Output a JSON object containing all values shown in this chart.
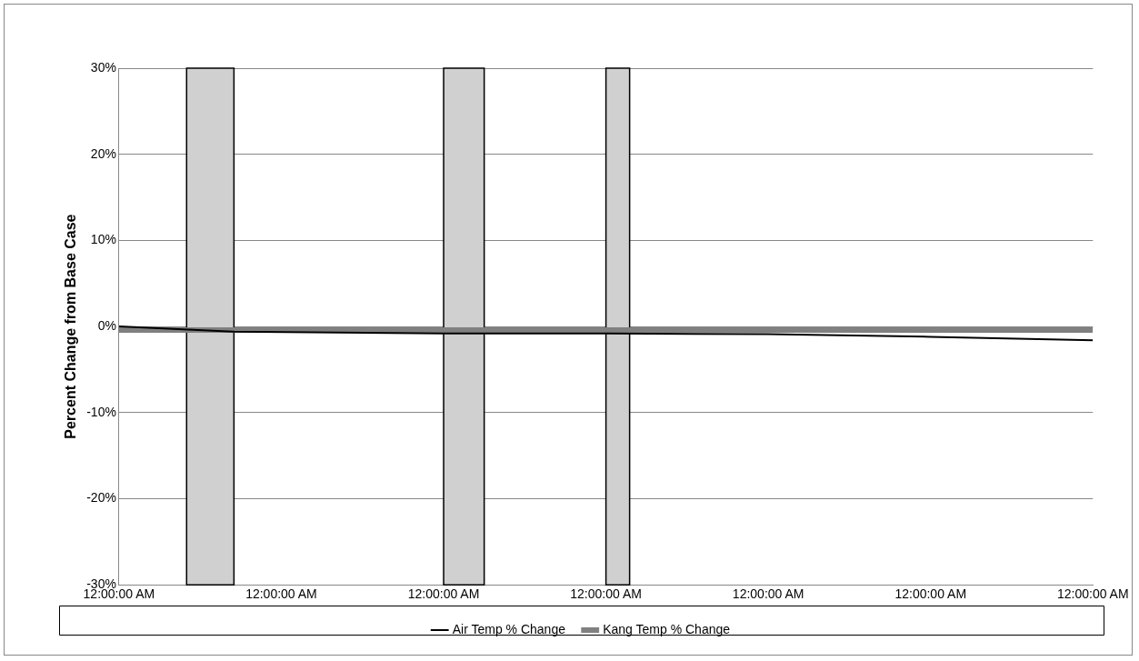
{
  "chart_data": {
    "type": "line",
    "ylabel": "Percent Change from Base Case",
    "xlim": [
      "--01-01T00:00",
      "--01-07T00:00"
    ],
    "xticks": [
      {
        "value": "--01-01T00:00",
        "label": "12:00:00 AM"
      },
      {
        "value": "--01-02T00:00",
        "label": "12:00:00 AM"
      },
      {
        "value": "--01-03T00:00",
        "label": "12:00:00 AM"
      },
      {
        "value": "--01-04T00:00",
        "label": "12:00:00 AM"
      },
      {
        "value": "--01-05T00:00",
        "label": "12:00:00 AM"
      },
      {
        "value": "--01-06T00:00",
        "label": "12:00:00 AM"
      },
      {
        "value": "--01-07T00:00",
        "label": "12:00:00 AM"
      }
    ],
    "ylim": [
      -30,
      30
    ],
    "yticks": [
      {
        "value": -30,
        "label": "-30%"
      },
      {
        "value": -20,
        "label": "-20%"
      },
      {
        "value": -10,
        "label": "-10%"
      },
      {
        "value": 0,
        "label": "0%"
      },
      {
        "value": 10,
        "label": "10%"
      },
      {
        "value": 20,
        "label": "20%"
      },
      {
        "value": 30,
        "label": "30%"
      }
    ],
    "grid": "y",
    "legend": "bottom",
    "marker": "none",
    "line_style": "solid",
    "series": [
      {
        "name": "Air Temp % Change",
        "color": "#000000",
        "x": [
          "--01-01T00:00",
          "--01-01T17:00",
          "--01-03T00:00",
          "--01-04T00:00",
          "--01-05T00:00",
          "--01-06T00:00",
          "--01-07T00:00"
        ],
        "values": [
          0,
          -0.6,
          -0.8,
          -0.8,
          -0.9,
          -1.2,
          -1.6
        ]
      },
      {
        "name": "Kang Temp % Change",
        "color": "#808080",
        "x": [
          "--01-01T00:00",
          "--01-01T17:00",
          "--01-03T00:00",
          "--01-04T00:00",
          "--01-05T00:00",
          "--01-06T00:00",
          "--01-07T00:00"
        ],
        "values": [
          -0.4,
          -0.4,
          -0.4,
          -0.4,
          -0.4,
          -0.4,
          -0.4
        ]
      }
    ],
    "bands": [
      {
        "axis": "x",
        "from": "--01-01T10:00",
        "to": "--01-01T17:00",
        "color": "#d0d0d0"
      },
      {
        "axis": "x",
        "from": "--01-03T00:00",
        "to": "--01-03T06:00",
        "color": "#d0d0d0"
      },
      {
        "axis": "x",
        "from": "--01-04T00:00",
        "to": "--01-04T03:30",
        "color": "#d0d0d0"
      }
    ]
  }
}
